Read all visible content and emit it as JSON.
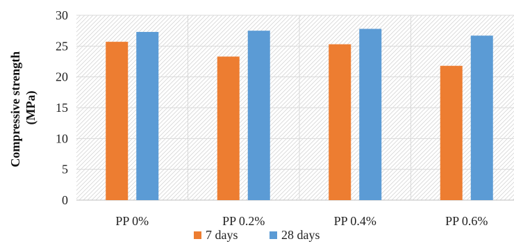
{
  "chart_data": {
    "type": "bar",
    "categories": [
      "PP 0%",
      "PP 0.2%",
      "PP 0.4%",
      "PP 0.6%"
    ],
    "series": [
      {
        "name": "7 days",
        "values": [
          25.7,
          23.3,
          25.3,
          21.8
        ],
        "color": "#ED7D31"
      },
      {
        "name": "28 days",
        "values": [
          27.3,
          27.5,
          27.8,
          26.7
        ],
        "color": "#5B9BD5"
      }
    ],
    "title": "",
    "xlabel": "",
    "ylabel_lines": [
      "Compressive strength",
      "(MPa)"
    ],
    "ylim": [
      0,
      30
    ],
    "yticks": [
      "0",
      "5",
      "10",
      "15",
      "20",
      "25",
      "30"
    ],
    "grid": true,
    "legend_position": "bottom"
  }
}
